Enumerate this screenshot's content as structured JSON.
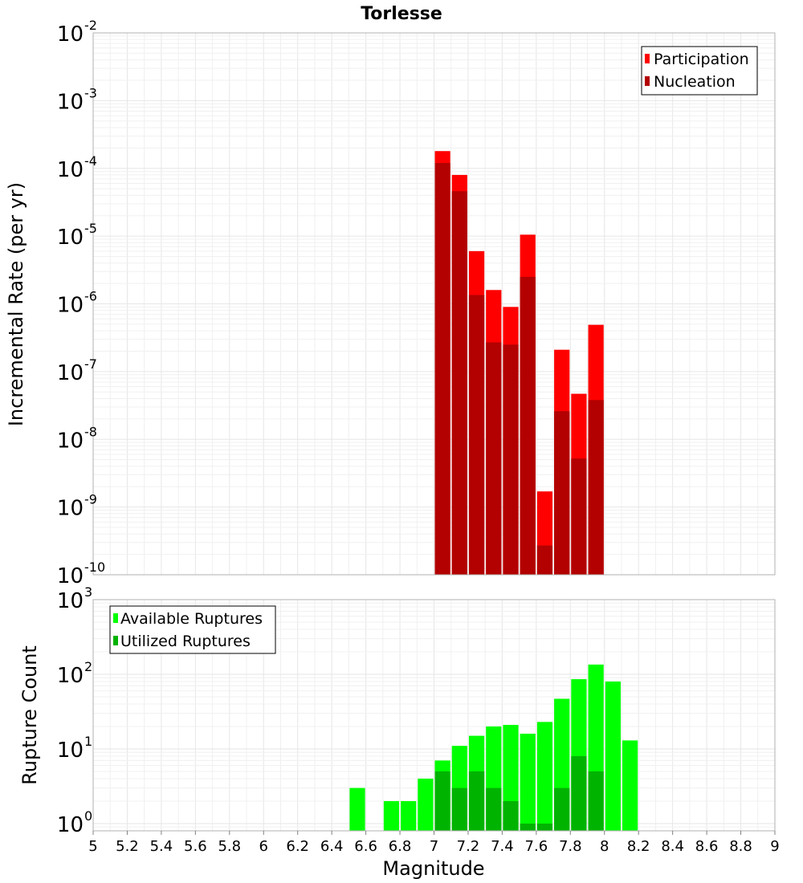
{
  "chart_data": [
    {
      "type": "bar",
      "title": "Torlesse",
      "ylabel": "Incremental Rate (per yr)",
      "xlabel": "",
      "y_scale": "log",
      "ylim": [
        1e-10,
        0.01
      ],
      "xlim": [
        5,
        9
      ],
      "bar_width": 0.1,
      "legend_position": "top-right",
      "series": [
        {
          "name": "Participation",
          "color": "#ff0000",
          "x": [
            7.05,
            7.15,
            7.25,
            7.35,
            7.45,
            7.55,
            7.65,
            7.75,
            7.85,
            7.95
          ],
          "values": [
            0.00018,
            8e-05,
            6e-06,
            1.6e-06,
            9e-07,
            1.05e-05,
            1.7e-09,
            2.1e-07,
            4.7e-08,
            4.9e-07
          ]
        },
        {
          "name": "Nucleation",
          "color": "#b30000",
          "x": [
            7.05,
            7.15,
            7.25,
            7.35,
            7.45,
            7.55,
            7.65,
            7.75,
            7.85,
            7.95
          ],
          "values": [
            0.00012,
            4.6e-05,
            1.35e-06,
            2.7e-07,
            2.5e-07,
            2.5e-06,
            2.7e-10,
            2.6e-08,
            5.2e-09,
            3.8e-08
          ]
        }
      ]
    },
    {
      "type": "bar",
      "title": "",
      "ylabel": "Rupture Count",
      "xlabel": "Magnitude",
      "y_scale": "log",
      "ylim": [
        0.8,
        1000
      ],
      "xlim": [
        5,
        9
      ],
      "bar_width": 0.1,
      "legend_position": "top-left",
      "series": [
        {
          "name": "Available Ruptures",
          "color": "#00ff00",
          "x": [
            6.55,
            6.75,
            6.85,
            6.95,
            7.05,
            7.15,
            7.25,
            7.35,
            7.45,
            7.55,
            7.65,
            7.75,
            7.85,
            7.95,
            8.05,
            8.15
          ],
          "values": [
            3,
            2,
            2,
            4,
            7,
            11,
            15,
            20,
            21,
            16,
            23,
            47,
            86,
            135,
            80,
            13
          ]
        },
        {
          "name": "Utilized Ruptures",
          "color": "#00b300",
          "x": [
            7.05,
            7.15,
            7.25,
            7.35,
            7.45,
            7.55,
            7.65,
            7.75,
            7.85,
            7.95
          ],
          "values": [
            5,
            3,
            5,
            3,
            2,
            1,
            1,
            3,
            8,
            5
          ]
        }
      ]
    }
  ],
  "x_tick_labels": [
    "5",
    "5.2",
    "5.4",
    "5.6",
    "5.8",
    "6",
    "6.2",
    "6.4",
    "6.6",
    "6.8",
    "7",
    "7.2",
    "7.4",
    "7.6",
    "7.8",
    "8",
    "8.2",
    "8.4",
    "8.6",
    "8.8",
    "9"
  ],
  "top_y_ticks": [
    {
      "base": "10",
      "exp": "-10"
    },
    {
      "base": "10",
      "exp": "-9"
    },
    {
      "base": "10",
      "exp": "-8"
    },
    {
      "base": "10",
      "exp": "-7"
    },
    {
      "base": "10",
      "exp": "-6"
    },
    {
      "base": "10",
      "exp": "-5"
    },
    {
      "base": "10",
      "exp": "-4"
    },
    {
      "base": "10",
      "exp": "-3"
    },
    {
      "base": "10",
      "exp": "-2"
    }
  ],
  "bottom_y_ticks": [
    {
      "base": "10",
      "exp": "0"
    },
    {
      "base": "10",
      "exp": "1"
    },
    {
      "base": "10",
      "exp": "2"
    },
    {
      "base": "10",
      "exp": "3"
    }
  ]
}
